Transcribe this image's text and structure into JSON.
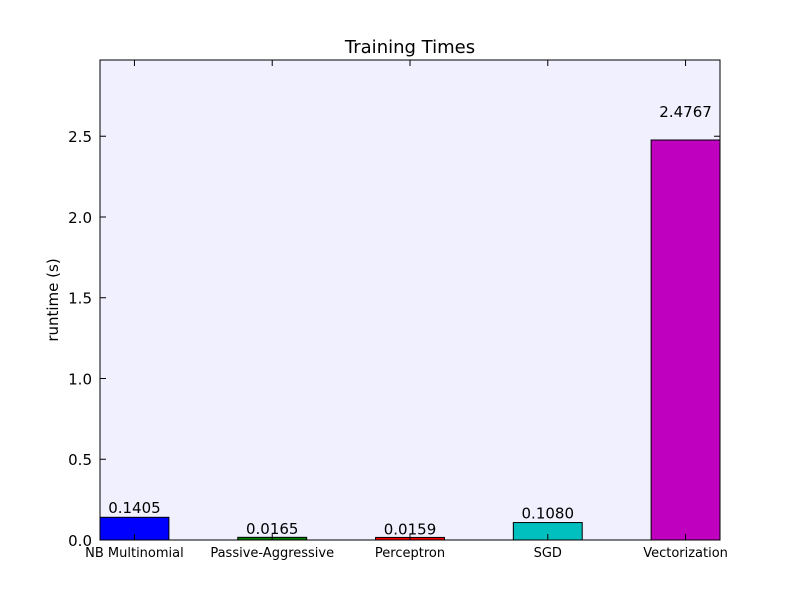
{
  "chart_data": {
    "type": "bar",
    "title": "Training Times",
    "ylabel": "runtime (s)",
    "categories": [
      "NB Multinomial",
      "Passive-Aggressive",
      "Perceptron",
      "SGD",
      "Vectorization"
    ],
    "values": [
      0.1405,
      0.0165,
      0.0159,
      0.108,
      2.4767
    ],
    "value_labels": [
      "0.1405",
      "0.0165",
      "0.0159",
      "0.1080",
      "2.4767"
    ],
    "colors": [
      "#0000ff",
      "#008000",
      "#ff0000",
      "#00bfbf",
      "#bf00bf"
    ],
    "ylim": [
      0,
      2.972
    ],
    "yticks": [
      {
        "value": 0,
        "label": "0.0"
      },
      {
        "value": 0.5,
        "label": "0.5"
      },
      {
        "value": 1,
        "label": "1.0"
      },
      {
        "value": 1.5,
        "label": "1.5"
      },
      {
        "value": 2,
        "label": "2.0"
      },
      {
        "value": 2.5,
        "label": "2.5"
      }
    ],
    "background": "#f0f0ff"
  }
}
